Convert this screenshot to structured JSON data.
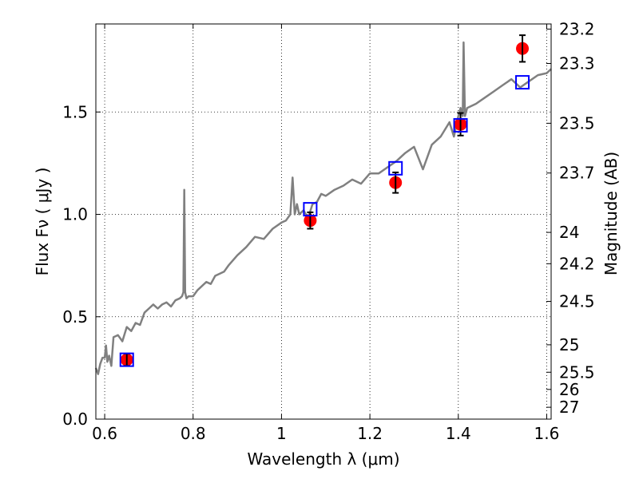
{
  "chart_data": {
    "type": "scatter",
    "xlabel": "Wavelength  λ (μm)",
    "ylabel": "Flux  Fν  ( μJy )",
    "ylabel_right": "Magnitude (AB)",
    "xlim": [
      0.58,
      1.61
    ],
    "ylim": [
      0.0,
      1.93
    ],
    "x_ticks": [
      0.6,
      0.8,
      1.0,
      1.2,
      1.4,
      1.6
    ],
    "x_tick_labels": [
      "0.6",
      "0.8",
      "1",
      "1.2",
      "1.4",
      "1.6"
    ],
    "y_ticks": [
      0.0,
      0.5,
      1.0,
      1.5
    ],
    "y_tick_labels": [
      "0.0",
      "0.5",
      "1.0",
      "1.5"
    ],
    "right_ticks": [
      {
        "label": "23.2",
        "flux": 1.905
      },
      {
        "label": "23.3",
        "flux": 1.737
      },
      {
        "label": "23.5",
        "flux": 1.445
      },
      {
        "label": "23.7",
        "flux": 1.202
      },
      {
        "label": "24",
        "flux": 0.912
      },
      {
        "label": "24.2",
        "flux": 0.759
      },
      {
        "label": "24.5",
        "flux": 0.575
      },
      {
        "label": "25",
        "flux": 0.363
      },
      {
        "label": "25.5",
        "flux": 0.229
      },
      {
        "label": "26",
        "flux": 0.145
      },
      {
        "label": "27",
        "flux": 0.058
      }
    ],
    "grid": true,
    "series": [
      {
        "kind": "line",
        "color": "#808080",
        "x": [
          0.58,
          0.585,
          0.59,
          0.595,
          0.6,
          0.603,
          0.606,
          0.61,
          0.615,
          0.62,
          0.63,
          0.64,
          0.65,
          0.66,
          0.67,
          0.68,
          0.69,
          0.7,
          0.71,
          0.72,
          0.73,
          0.74,
          0.75,
          0.76,
          0.77,
          0.775,
          0.778,
          0.78,
          0.782,
          0.785,
          0.79,
          0.8,
          0.81,
          0.82,
          0.83,
          0.84,
          0.85,
          0.86,
          0.87,
          0.88,
          0.9,
          0.92,
          0.94,
          0.96,
          0.98,
          1.0,
          1.01,
          1.02,
          1.025,
          1.03,
          1.035,
          1.04,
          1.05,
          1.06,
          1.07,
          1.08,
          1.09,
          1.1,
          1.12,
          1.14,
          1.16,
          1.18,
          1.2,
          1.22,
          1.24,
          1.26,
          1.28,
          1.3,
          1.32,
          1.34,
          1.36,
          1.38,
          1.39,
          1.395,
          1.4,
          1.405,
          1.41,
          1.412,
          1.415,
          1.42,
          1.44,
          1.46,
          1.48,
          1.5,
          1.52,
          1.54,
          1.56,
          1.58,
          1.6,
          1.61
        ],
        "y": [
          0.25,
          0.22,
          0.27,
          0.3,
          0.3,
          0.36,
          0.28,
          0.31,
          0.26,
          0.4,
          0.41,
          0.38,
          0.45,
          0.43,
          0.47,
          0.46,
          0.52,
          0.54,
          0.56,
          0.54,
          0.56,
          0.57,
          0.55,
          0.58,
          0.59,
          0.6,
          0.62,
          1.12,
          0.62,
          0.59,
          0.6,
          0.6,
          0.63,
          0.65,
          0.67,
          0.66,
          0.7,
          0.71,
          0.72,
          0.75,
          0.8,
          0.84,
          0.89,
          0.88,
          0.93,
          0.96,
          0.97,
          1.0,
          1.18,
          1.0,
          1.05,
          1.0,
          1.02,
          0.98,
          1.05,
          1.06,
          1.1,
          1.09,
          1.12,
          1.14,
          1.17,
          1.15,
          1.2,
          1.2,
          1.23,
          1.26,
          1.3,
          1.33,
          1.22,
          1.34,
          1.38,
          1.45,
          1.38,
          1.43,
          1.48,
          1.52,
          1.48,
          1.84,
          1.48,
          1.52,
          1.54,
          1.57,
          1.6,
          1.63,
          1.66,
          1.62,
          1.65,
          1.68,
          1.69,
          1.71
        ]
      },
      {
        "kind": "points",
        "color": "#ff0000",
        "marker": "circle",
        "x": [
          0.65,
          1.065,
          1.258,
          1.405,
          1.545
        ],
        "y": [
          0.29,
          0.97,
          1.155,
          1.44,
          1.81
        ],
        "yerr": [
          0.03,
          0.04,
          0.05,
          0.055,
          0.065
        ]
      },
      {
        "kind": "points",
        "color": "#0000ff",
        "marker": "open-square",
        "x": [
          0.65,
          1.065,
          1.258,
          1.405,
          1.545
        ],
        "y": [
          0.29,
          1.025,
          1.225,
          1.435,
          1.645
        ]
      }
    ]
  }
}
